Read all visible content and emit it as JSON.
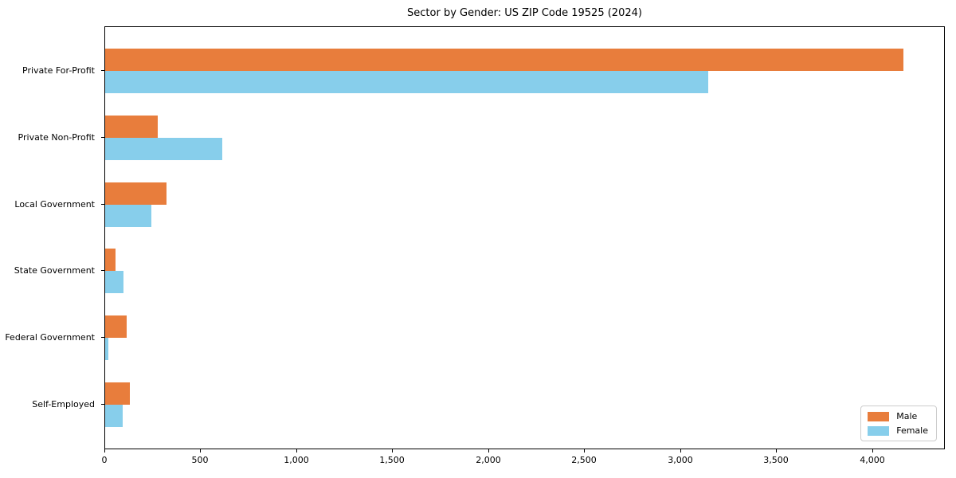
{
  "chart_data": {
    "type": "bar",
    "orientation": "horizontal",
    "title": "Sector by Gender: US ZIP Code 19525 (2024)",
    "categories": [
      "Private For-Profit",
      "Private Non-Profit",
      "Local Government",
      "State Government",
      "Federal Government",
      "Self-Employed"
    ],
    "series": [
      {
        "name": "Male",
        "color": "#E87D3C",
        "values": [
          4160,
          275,
          320,
          55,
          110,
          130
        ]
      },
      {
        "name": "Female",
        "color": "#87CEEB",
        "values": [
          3140,
          610,
          240,
          97,
          15,
          92
        ]
      }
    ],
    "xlabel": "",
    "ylabel": "",
    "xlim": [
      0,
      4370
    ],
    "x_ticks": [
      0,
      500,
      1000,
      1500,
      2000,
      2500,
      3000,
      3500,
      4000
    ],
    "x_tick_labels": [
      "0",
      "500",
      "1,000",
      "1,500",
      "2,000",
      "2,500",
      "3,000",
      "3,500",
      "4,000"
    ],
    "grid": false,
    "legend": {
      "position": "lower-right",
      "entries": [
        "Male",
        "Female"
      ]
    },
    "colors": {
      "male": "#E87D3C",
      "female": "#87CEEB",
      "spine": "#000000",
      "legend_border": "#cccccc",
      "background": "#ffffff"
    }
  }
}
